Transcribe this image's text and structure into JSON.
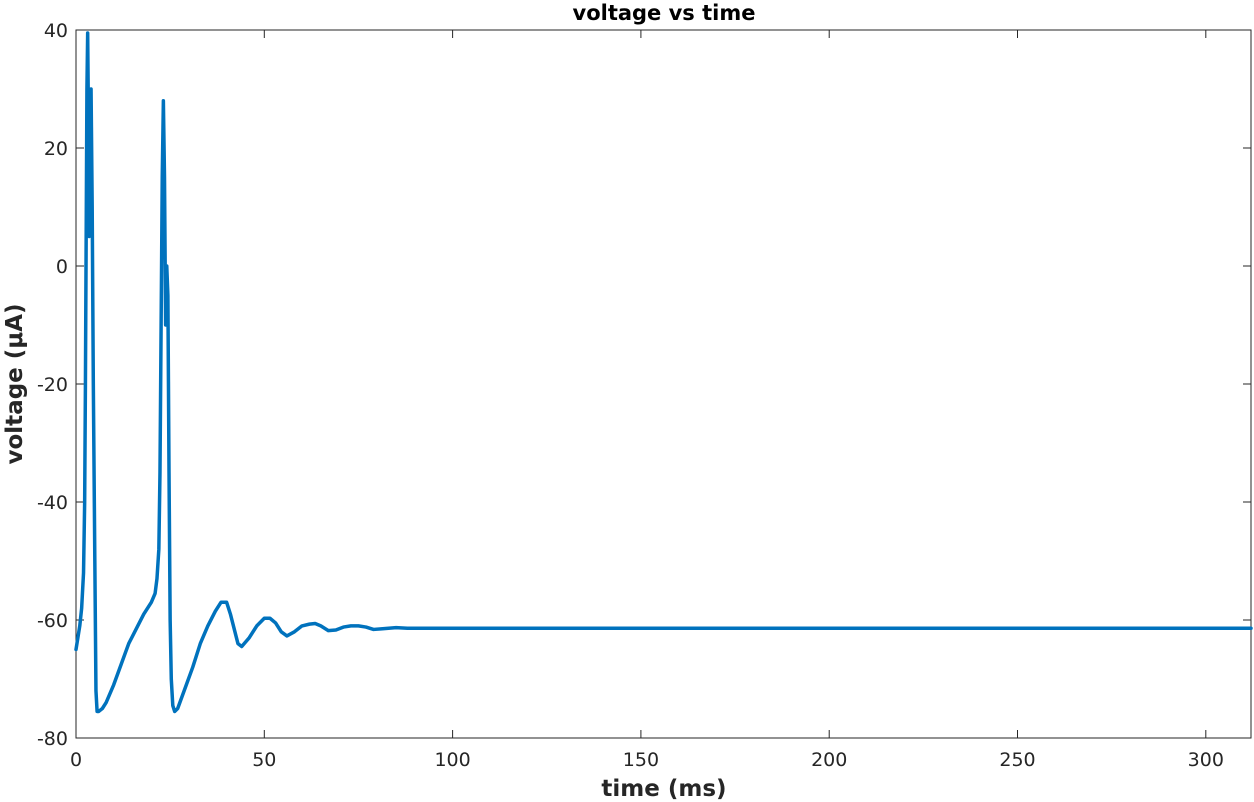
{
  "chart_data": {
    "type": "line",
    "title": "voltage vs time",
    "xlabel": "time (ms)",
    "ylabel": "voltage (μA)",
    "xlim": [
      0,
      312
    ],
    "ylim": [
      -80,
      40
    ],
    "xticks": [
      0,
      50,
      100,
      150,
      200,
      250,
      300
    ],
    "yticks": [
      -80,
      -60,
      -40,
      -20,
      0,
      20,
      40
    ],
    "grid": false,
    "series": [
      {
        "color": "#0072BD",
        "x": [
          0,
          0.5,
          1,
          1.5,
          2,
          2.3,
          2.5,
          2.7,
          2.9,
          3.1,
          3.3,
          3.5,
          3.7,
          4.0,
          4.3,
          4.6,
          5.0,
          5.3,
          5.6,
          6.0,
          7,
          8,
          10,
          12,
          14,
          16,
          18,
          20,
          21,
          21.5,
          22,
          22.3,
          22.6,
          22.9,
          23.2,
          23.5,
          23.8,
          24.1,
          24.4,
          24.7,
          25,
          25.3,
          25.7,
          26.2,
          27,
          29,
          31,
          33,
          35,
          37,
          38.5,
          40,
          41,
          42,
          43,
          44,
          46,
          48,
          50,
          51.5,
          53,
          54.5,
          56,
          58,
          60,
          62,
          63.5,
          65,
          67,
          69,
          71,
          73,
          75,
          77,
          79,
          81,
          83,
          85,
          88,
          95,
          120,
          150,
          200,
          250,
          300,
          312
        ],
        "y": [
          -65,
          -63,
          -61,
          -58,
          -52,
          -40,
          -20,
          5,
          30,
          39.5,
          25,
          5,
          25,
          30,
          10,
          -20,
          -50,
          -72,
          -75.5,
          -75.5,
          -75,
          -74,
          -71,
          -67.5,
          -64,
          -61.5,
          -59,
          -57,
          -55.5,
          -53,
          -48,
          -35,
          -10,
          15,
          28,
          15,
          -10,
          0,
          -5,
          -35,
          -60,
          -70,
          -74.5,
          -75.5,
          -75,
          -71.5,
          -68,
          -64,
          -61,
          -58.5,
          -57,
          -57,
          -59,
          -61.5,
          -64,
          -64.5,
          -63,
          -61,
          -59.7,
          -59.7,
          -60.5,
          -62,
          -62.7,
          -62,
          -61,
          -60.7,
          -60.6,
          -61,
          -61.8,
          -61.7,
          -61.2,
          -61,
          -61,
          -61.2,
          -61.6,
          -61.5,
          -61.4,
          -61.3,
          -61.4,
          -61.4,
          -61.4,
          -61.4,
          -61.4,
          -61.4,
          -61.4,
          -61.4
        ]
      }
    ]
  }
}
